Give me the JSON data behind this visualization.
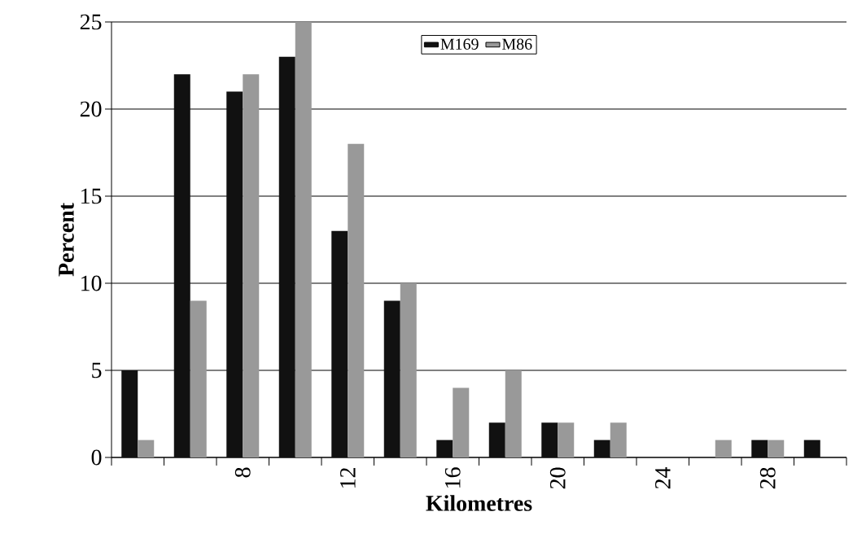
{
  "chart_data": {
    "type": "bar",
    "xlabel": "Kilometres",
    "ylabel": "Percent",
    "categories": [
      null,
      null,
      "8",
      null,
      "12",
      null,
      "16",
      null,
      "20",
      null,
      "24",
      null,
      "28",
      null
    ],
    "series": [
      {
        "name": "M169",
        "color": "#111111",
        "values": [
          5,
          22,
          21,
          23,
          13,
          9,
          1,
          2,
          2,
          1,
          0,
          0,
          1,
          1
        ]
      },
      {
        "name": "M86",
        "color": "#999999",
        "values": [
          1,
          9,
          22,
          25,
          18,
          10,
          4,
          5,
          2,
          2,
          0,
          1,
          1,
          0
        ]
      }
    ],
    "ylim": [
      0,
      25
    ],
    "yticks": [
      0,
      5,
      10,
      15,
      20,
      25
    ],
    "grid": "y",
    "legend": "top"
  }
}
